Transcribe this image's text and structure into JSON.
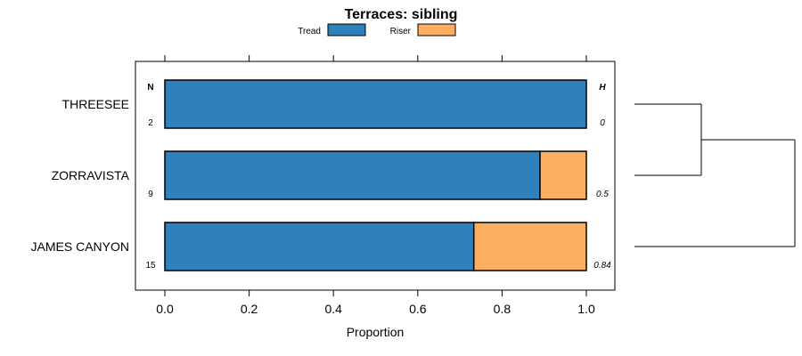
{
  "chart_data": {
    "type": "bar",
    "title": "Terraces: sibling",
    "xlabel": "Proportion",
    "ylabel": "",
    "xlim": [
      -0.07,
      1.07
    ],
    "x_ticks": [
      "0.0",
      "0.2",
      "0.4",
      "0.6",
      "0.8",
      "1.0"
    ],
    "x_tick_values": [
      0,
      0.2,
      0.4,
      0.6,
      0.8,
      1.0
    ],
    "stacked": true,
    "orientation": "horizontal",
    "legend_position": "top",
    "categories": [
      "THREESEE",
      "ZORRAVISTA",
      "JAMES CANYON"
    ],
    "series": [
      {
        "name": "Tread",
        "color": "#2e82b9",
        "values": [
          1.0,
          0.89,
          0.733
        ]
      },
      {
        "name": "Riser",
        "color": "#fdae61",
        "values": [
          0.0,
          0.11,
          0.267
        ]
      }
    ],
    "n_header": "N",
    "h_header": "H",
    "n_values": [
      "2",
      "9",
      "15"
    ],
    "h_values": [
      "0",
      "0.5",
      "0.84"
    ],
    "dendrogram": "ZORRAVISTA and THREESEE joined first, then JAMES CANYON"
  }
}
